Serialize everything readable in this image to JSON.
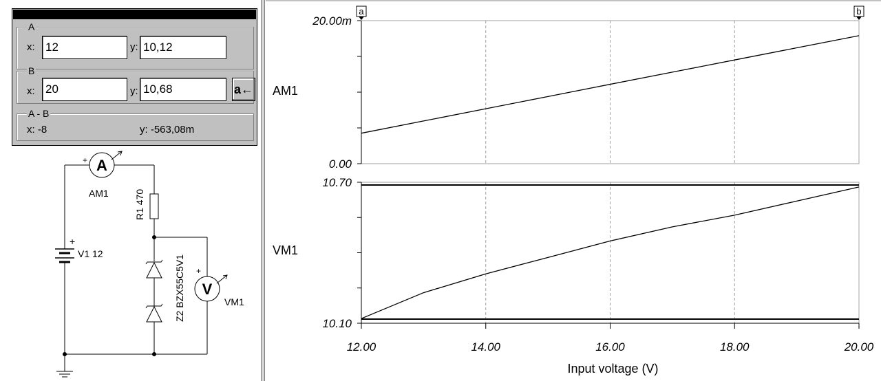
{
  "cursor_panel": {
    "cursor_a": {
      "label": "A",
      "x_label": "x:",
      "y_label": "y:",
      "x_value": "12",
      "y_value": "10,12"
    },
    "cursor_b": {
      "label": "B",
      "x_label": "x:",
      "y_label": "y:",
      "x_value": "20",
      "y_value": "10,68",
      "swap_label": "a←"
    },
    "difference": {
      "label": "A - B",
      "x_text": "x:  -8",
      "y_text": "y: -563,08m"
    }
  },
  "schematic": {
    "ammeter": {
      "glyph": "A",
      "label": "AM1"
    },
    "voltmeter": {
      "glyph": "V",
      "label": "VM1"
    },
    "resistor_label": "R1 470",
    "source_label": "V1 12",
    "zener_label": "Z2 BZX55C5V1",
    "plus_sign": "+"
  },
  "chart_data": [
    {
      "type": "line",
      "ylabel": "AM1",
      "x": [
        12,
        13,
        14,
        15,
        16,
        17,
        18,
        19,
        20
      ],
      "series": [
        {
          "values": [
            0.00426,
            0.00597,
            0.00768,
            0.00939,
            0.0111,
            0.0128,
            0.0145,
            0.0162,
            0.0179
          ]
        }
      ],
      "xlim": [
        12,
        20
      ],
      "ylim": [
        0,
        0.02
      ],
      "ytick_labels": [
        "0.00",
        "20.00m"
      ],
      "grid": true
    },
    {
      "type": "line",
      "xlabel": "Input voltage (V)",
      "ylabel": "VM1",
      "x": [
        12,
        13,
        14,
        15,
        16,
        17,
        18,
        19,
        20
      ],
      "series": [
        {
          "values": [
            10.12,
            10.23,
            10.31,
            10.38,
            10.45,
            10.51,
            10.56,
            10.62,
            10.68
          ]
        }
      ],
      "xlim": [
        12,
        20
      ],
      "ylim": [
        10.1,
        10.7
      ],
      "xtick_labels": [
        "12.00",
        "14.00",
        "16.00",
        "18.00",
        "20.00"
      ],
      "ytick_labels": [
        "10.10",
        "10.70"
      ],
      "grid": true
    }
  ],
  "cursor_markers": {
    "a": "a",
    "b": "b"
  }
}
